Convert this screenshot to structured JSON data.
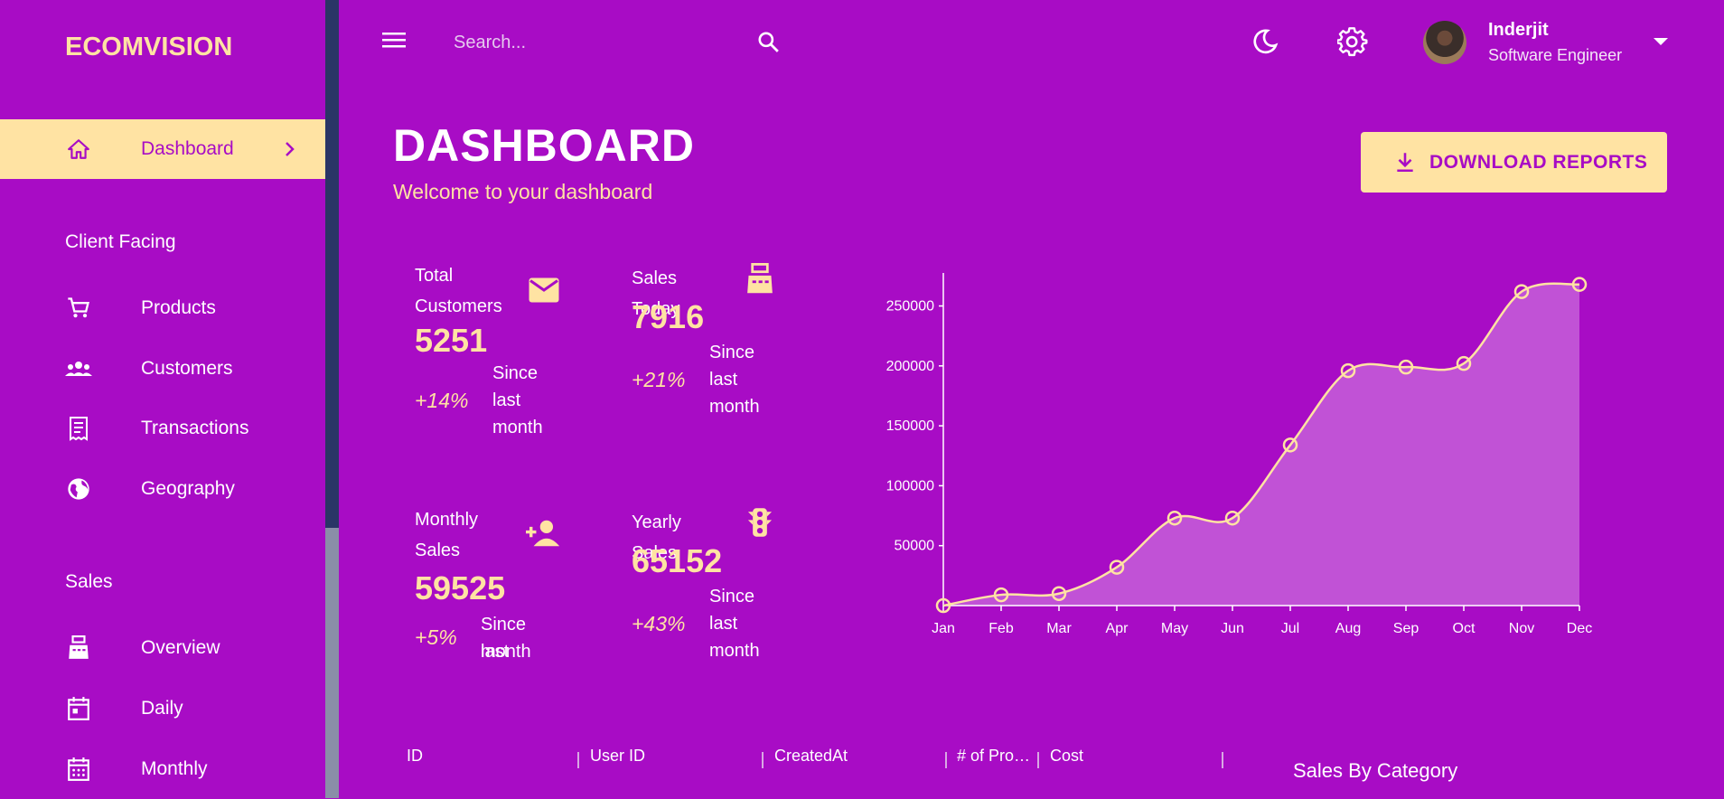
{
  "app": {
    "brand": "ECOMVISION"
  },
  "sidebar": {
    "dashboard_label": "Dashboard",
    "section_client": "Client Facing",
    "items_client": [
      {
        "label": "Products",
        "icon": "cart-icon"
      },
      {
        "label": "Customers",
        "icon": "groups-icon"
      },
      {
        "label": "Transactions",
        "icon": "receipt-icon"
      },
      {
        "label": "Geography",
        "icon": "globe-icon"
      }
    ],
    "section_sales": "Sales",
    "items_sales": [
      {
        "label": "Overview",
        "icon": "point-of-sale-icon"
      },
      {
        "label": "Daily",
        "icon": "calendar-day-icon"
      },
      {
        "label": "Monthly",
        "icon": "calendar-month-icon"
      }
    ]
  },
  "topbar": {
    "search_placeholder": "Search...",
    "user_name": "Inderjit",
    "user_role": "Software Engineer"
  },
  "header": {
    "title": "DASHBOARD",
    "subtitle": "Welcome to your dashboard",
    "download_label": "DOWNLOAD REPORTS"
  },
  "stats": {
    "total_customers": {
      "title_line1": "Total",
      "title_line2": "Customers",
      "value": "5251",
      "increase": "+14%",
      "since_l1": "Since",
      "since_l2": "last",
      "since_l3": "month",
      "icon": "email-icon"
    },
    "sales_today": {
      "title": "Sales Today",
      "value": "7916",
      "increase": "+21%",
      "since_l1": "Since",
      "since_l2": "last",
      "since_l3": "month",
      "icon": "point-of-sale-icon"
    },
    "monthly_sales": {
      "title_line1": "Monthly",
      "title_line2": "Sales",
      "value": "59525",
      "increase": "+5%",
      "since_l1": "Since last",
      "since_l2": "month",
      "icon": "person-add-icon"
    },
    "yearly_sales": {
      "title": "Yearly Sales",
      "value": "65152",
      "increase": "+43%",
      "since_l1": "Since",
      "since_l2": "last",
      "since_l3": "month",
      "icon": "traffic-icon"
    }
  },
  "chart_data": {
    "type": "area",
    "categories": [
      "Jan",
      "Feb",
      "Mar",
      "Apr",
      "May",
      "Jun",
      "Jul",
      "Aug",
      "Sep",
      "Oct",
      "Nov",
      "Dec"
    ],
    "values": [
      0,
      9000,
      10000,
      32000,
      73000,
      73000,
      134000,
      196000,
      199000,
      202000,
      262000,
      268000
    ],
    "yticks": [
      50000,
      100000,
      150000,
      200000,
      250000
    ],
    "ylim": [
      0,
      270000
    ],
    "line_color": "#ffe3a3",
    "fill_color": "#c65fd8"
  },
  "table": {
    "columns": [
      "ID",
      "User ID",
      "CreatedAt",
      "# of Pro…",
      "Cost"
    ]
  },
  "sales_by_category": {
    "title": "Sales By Category"
  },
  "colors": {
    "background": "#a80cc5",
    "accent": "#ffe3a3"
  }
}
